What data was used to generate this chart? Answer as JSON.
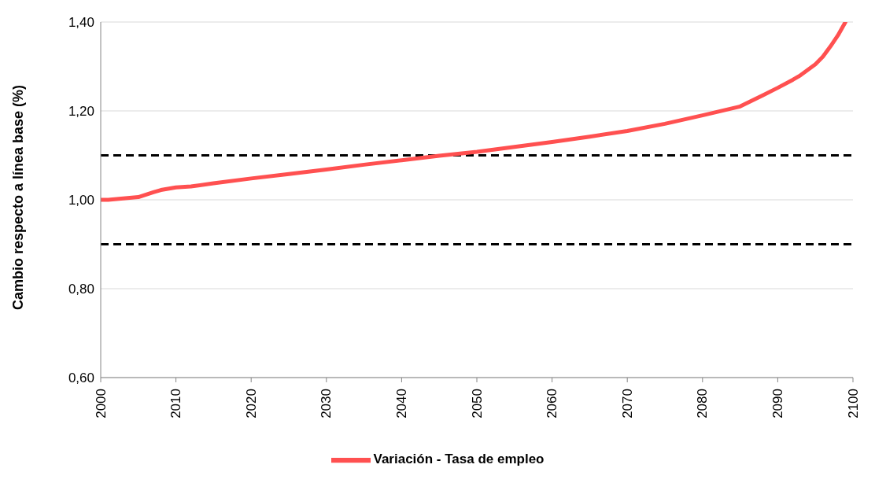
{
  "chart_data": {
    "type": "line",
    "ylabel": "Cambio respecto a línea base (%)",
    "x": [
      2000,
      2001,
      2003,
      2005,
      2007,
      2008,
      2010,
      2012,
      2015,
      2020,
      2025,
      2030,
      2035,
      2040,
      2045,
      2050,
      2055,
      2060,
      2065,
      2070,
      2075,
      2080,
      2085,
      2088,
      2090,
      2092,
      2093,
      2095,
      2096,
      2097,
      2098,
      2099
    ],
    "series": [
      {
        "name": "Variación - Tasa de empleo",
        "color": "#ff5050",
        "values": [
          1.0,
          1.0,
          1.003,
          1.006,
          1.017,
          1.022,
          1.028,
          1.03,
          1.037,
          1.048,
          1.058,
          1.068,
          1.079,
          1.089,
          1.099,
          1.108,
          1.119,
          1.13,
          1.142,
          1.155,
          1.171,
          1.19,
          1.21,
          1.235,
          1.252,
          1.27,
          1.28,
          1.305,
          1.322,
          1.345,
          1.37,
          1.4
        ]
      }
    ],
    "xlim": [
      2000,
      2100
    ],
    "xticks": [
      2000,
      2010,
      2020,
      2030,
      2040,
      2050,
      2060,
      2070,
      2080,
      2090,
      2100
    ],
    "ylim": [
      0.6,
      1.4
    ],
    "yticks": [
      {
        "value": 0.6,
        "label": "0,60"
      },
      {
        "value": 0.8,
        "label": "0,80"
      },
      {
        "value": 1.0,
        "label": "1,00"
      },
      {
        "value": 1.2,
        "label": "1,20"
      },
      {
        "value": 1.4,
        "label": "1,40"
      }
    ],
    "ref_lines": [
      {
        "axis": "y",
        "value": 1.1,
        "color": "#000000",
        "line_style": "dashed"
      },
      {
        "axis": "y",
        "value": 0.9,
        "color": "#000000",
        "line_style": "dashed"
      }
    ],
    "grid": "y",
    "legend": "bottom",
    "marker": "none",
    "line_style": "solid"
  }
}
